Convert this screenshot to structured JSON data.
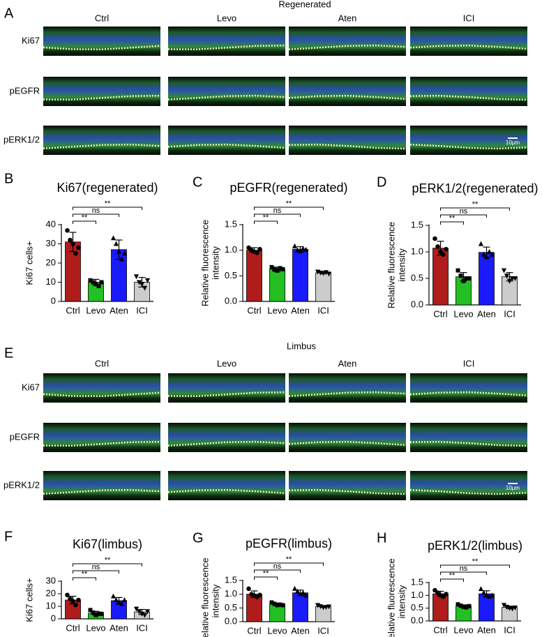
{
  "figure": {
    "sections": [
      {
        "letter": "A",
        "title": "Regenerated",
        "columns": [
          "Ctrl",
          "Levo",
          "Aten",
          "ICI"
        ],
        "rows": [
          "Ki67",
          "pEGFR",
          "pERK1/2"
        ],
        "scale_bar": "10μm"
      },
      {
        "letter": "E",
        "title": "Limbus",
        "columns": [
          "Ctrl",
          "Levo",
          "Aten",
          "ICI"
        ],
        "rows": [
          "Ki67",
          "pEGFR",
          "pERK1/2"
        ],
        "scale_bar": "10μm"
      }
    ]
  },
  "chart_data": [
    {
      "type": "bar",
      "panel": "B",
      "title": "Ki67(regenerated)",
      "ylabel": [
        "Ki67 cells+"
      ],
      "categories": [
        "Ctrl",
        "Levo",
        "Aten",
        "ICI"
      ],
      "values": [
        31,
        10,
        27,
        10
      ],
      "errors": [
        5,
        1.5,
        5,
        2.5
      ],
      "points": [
        [
          37,
          32,
          30,
          25,
          28
        ],
        [
          11,
          10,
          9,
          8,
          10
        ],
        [
          33,
          30,
          26,
          22,
          25
        ],
        [
          13,
          10,
          9,
          7,
          11
        ]
      ],
      "colors": [
        "#b01c1c",
        "#22c022",
        "#1a1aff",
        "#cccccc"
      ],
      "ylim": [
        0,
        40
      ],
      "yticks": [
        0,
        10,
        20,
        30,
        40
      ],
      "significance": [
        "**",
        "ns",
        "**"
      ]
    },
    {
      "type": "bar",
      "panel": "C",
      "title": "pEGFR(regenerated)",
      "ylabel": [
        "Relative fluorescence",
        "intensity"
      ],
      "categories": [
        "Ctrl",
        "Levo",
        "Aten",
        "ICI"
      ],
      "values": [
        1.0,
        0.63,
        1.02,
        0.56
      ],
      "errors": [
        0.05,
        0.04,
        0.05,
        0.02
      ],
      "points": [
        [
          1.05,
          1.0,
          0.97,
          0.95,
          1.02
        ],
        [
          0.67,
          0.62,
          0.6,
          0.65,
          0.63
        ],
        [
          1.08,
          1.0,
          0.98,
          1.03,
          1.01
        ],
        [
          0.58,
          0.56,
          0.55,
          0.57,
          0.54
        ]
      ],
      "colors": [
        "#b01c1c",
        "#22c022",
        "#1a1aff",
        "#cccccc"
      ],
      "ylim": [
        0,
        1.5
      ],
      "yticks": [
        {
          "value": 0,
          "label": "0.0"
        },
        0.5,
        {
          "value": 1,
          "label": "1.0"
        },
        1.5
      ],
      "significance": [
        "**",
        "ns",
        "**"
      ]
    },
    {
      "type": "bar",
      "panel": "D",
      "title": "pERK1/2(regenerated)",
      "ylabel": [
        "Relative fluorescence",
        "intensity"
      ],
      "categories": [
        "Ctrl",
        "Levo",
        "Aten",
        "ICI"
      ],
      "values": [
        1.07,
        0.53,
        0.99,
        0.53
      ],
      "errors": [
        0.13,
        0.08,
        0.1,
        0.08
      ],
      "points": [
        [
          1.25,
          1.1,
          1.0,
          0.95,
          1.05
        ],
        [
          0.65,
          0.55,
          0.45,
          0.5,
          0.5
        ],
        [
          1.15,
          0.95,
          0.9,
          1.0,
          0.95
        ],
        [
          0.65,
          0.55,
          0.45,
          0.5,
          0.5
        ]
      ],
      "colors": [
        "#b01c1c",
        "#22c022",
        "#1a1aff",
        "#cccccc"
      ],
      "ylim": [
        0,
        1.5
      ],
      "yticks": [
        {
          "value": 0,
          "label": "0.0"
        },
        0.5,
        {
          "value": 1,
          "label": "1.0"
        },
        1.5
      ],
      "significance": [
        "**",
        "ns",
        "**"
      ]
    },
    {
      "type": "bar",
      "panel": "F",
      "title": "Ki67(limbus)",
      "ylabel": [
        "Ki67 cells+"
      ],
      "categories": [
        "Ctrl",
        "Levo",
        "Aten",
        "ICI"
      ],
      "values": [
        15,
        4.5,
        14.5,
        5.5
      ],
      "errors": [
        3,
        1.5,
        2.5,
        2
      ],
      "points": [
        [
          19,
          16,
          14,
          11,
          15
        ],
        [
          7,
          5,
          3,
          4,
          4
        ],
        [
          18,
          15,
          13,
          12,
          15
        ],
        [
          8,
          6,
          4,
          3,
          6
        ]
      ],
      "colors": [
        "#b01c1c",
        "#22c022",
        "#1a1aff",
        "#cccccc"
      ],
      "ylim": [
        0,
        30
      ],
      "yticks": [
        0,
        10,
        20,
        30
      ],
      "significance": [
        "**",
        "ns",
        "**"
      ]
    },
    {
      "type": "bar",
      "panel": "G",
      "title": "pEGFR(limbus)",
      "ylabel": [
        "Relative fluorescence",
        "intensity"
      ],
      "categories": [
        "Ctrl",
        "Levo",
        "Aten",
        "ICI"
      ],
      "values": [
        1.0,
        0.63,
        1.05,
        0.55
      ],
      "errors": [
        0.12,
        0.05,
        0.1,
        0.03
      ],
      "points": [
        [
          1.2,
          1.0,
          0.95,
          0.9,
          0.97
        ],
        [
          0.7,
          0.65,
          0.6,
          0.62,
          0.6
        ],
        [
          1.2,
          1.1,
          1.0,
          1.05,
          0.95
        ],
        [
          0.6,
          0.56,
          0.52,
          0.53,
          0.55
        ]
      ],
      "colors": [
        "#b01c1c",
        "#22c022",
        "#1a1aff",
        "#cccccc"
      ],
      "ylim": [
        0,
        1.5
      ],
      "yticks": [
        {
          "value": 0,
          "label": "0.0"
        },
        0.5,
        {
          "value": 1,
          "label": "1.0"
        },
        1.5
      ],
      "significance": [
        "**",
        "ns",
        "**"
      ]
    },
    {
      "type": "bar",
      "panel": "H",
      "title": "pERK1/2(limbus)",
      "ylabel": [
        "Relative fluorescence",
        "intensity"
      ],
      "categories": [
        "Ctrl",
        "Levo",
        "Aten",
        "ICI"
      ],
      "values": [
        1.06,
        0.58,
        1.06,
        0.53
      ],
      "errors": [
        0.1,
        0.05,
        0.12,
        0.05
      ],
      "points": [
        [
          1.2,
          1.1,
          1.0,
          0.95,
          1.05
        ],
        [
          0.65,
          0.6,
          0.55,
          0.53,
          0.58
        ],
        [
          1.25,
          1.1,
          1.0,
          0.95,
          1.0
        ],
        [
          0.62,
          0.55,
          0.5,
          0.48,
          0.52
        ]
      ],
      "colors": [
        "#b01c1c",
        "#22c022",
        "#1a1aff",
        "#cccccc"
      ],
      "ylim": [
        0,
        1.5
      ],
      "yticks": [
        {
          "value": 0,
          "label": "0.0"
        },
        0.5,
        {
          "value": 1,
          "label": "1.0"
        },
        1.5
      ],
      "significance": [
        "**",
        "ns",
        "**"
      ]
    }
  ]
}
